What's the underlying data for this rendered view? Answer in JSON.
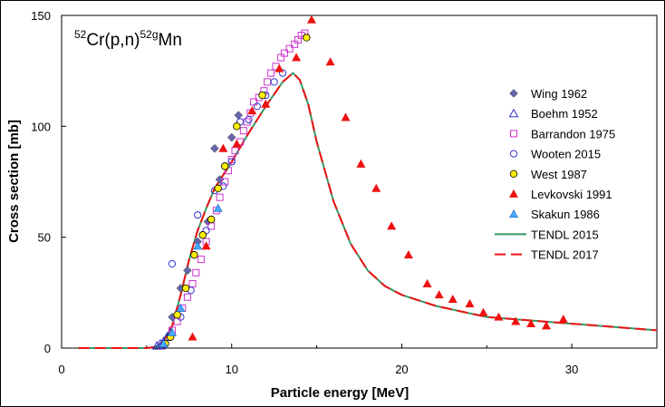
{
  "chart_data": {
    "type": "scatter",
    "title": {
      "sup1": "52",
      "main1": "Cr(p,n)",
      "sup2": "52g",
      "main2": "Mn"
    },
    "xlabel": "Particle  energy [MeV]",
    "ylabel": "Cross section [mb]",
    "xlim": [
      0,
      35
    ],
    "ylim": [
      0,
      150
    ],
    "xticks": [
      0,
      10,
      20,
      30
    ],
    "yticks": [
      0,
      50,
      100,
      150
    ],
    "grid": false,
    "legend_position": "right",
    "series": [
      {
        "name": "Wing 1962",
        "marker": "diamond",
        "color": "#6666aa",
        "x": [
          6.5,
          7.0,
          7.4,
          8.0,
          8.6,
          9.0,
          9.3,
          10.0,
          10.4
        ],
        "y": [
          14,
          27,
          35,
          48,
          57,
          90,
          76,
          95,
          105
        ]
      },
      {
        "name": "Boehm 1952",
        "marker": "triangle-open",
        "color": "#3333cc",
        "x": [
          5.6,
          5.8,
          6.0,
          6.2,
          6.4
        ],
        "y": [
          1,
          2,
          3,
          5,
          7
        ]
      },
      {
        "name": "Barrandon 1975",
        "marker": "square-open",
        "color": "#cc33cc",
        "x": [
          6.5,
          6.8,
          7.1,
          7.4,
          7.7,
          7.9,
          8.2,
          8.5,
          8.8,
          9.1,
          9.3,
          9.6,
          9.8,
          10.0,
          10.2,
          10.5,
          10.7,
          10.9,
          11.1,
          11.3,
          11.6,
          11.9,
          12.1,
          12.3,
          12.6,
          12.9,
          13.1,
          13.4,
          13.7,
          13.9,
          14.1,
          14.3
        ],
        "y": [
          8,
          12,
          18,
          23,
          29,
          34,
          40,
          48,
          55,
          62,
          68,
          75,
          80,
          85,
          89,
          93,
          98,
          102,
          106,
          111,
          113,
          116,
          120,
          124,
          127,
          131,
          133,
          135,
          137,
          139,
          141,
          142
        ]
      },
      {
        "name": "Wooten 2015",
        "marker": "circle-open",
        "color": "#3333cc",
        "x": [
          6.0,
          6.5,
          7.0,
          7.6,
          8.0,
          8.5,
          9.0,
          9.5,
          10.0,
          10.5,
          11.0,
          11.5,
          12.0,
          12.5,
          13.0
        ],
        "y": [
          1,
          38,
          14,
          26,
          60,
          53,
          71,
          73,
          84,
          102,
          103,
          109,
          114,
          120,
          124
        ]
      },
      {
        "name": "West 1987",
        "marker": "circle-filled",
        "color": "#ffee00",
        "x": [
          6.1,
          6.4,
          6.8,
          7.3,
          7.8,
          8.3,
          8.8,
          9.2,
          9.6,
          10.3,
          11.8,
          14.4
        ],
        "y": [
          2,
          5,
          15,
          27,
          42,
          51,
          58,
          72,
          82,
          100,
          114,
          140
        ]
      },
      {
        "name": "Levkovski 1991",
        "marker": "triangle-filled",
        "color": "#ee1111",
        "x": [
          7.7,
          8.5,
          9.5,
          10.3,
          11.2,
          12.0,
          12.8,
          13.8,
          14.7,
          15.8,
          16.7,
          17.6,
          18.5,
          19.4,
          20.4,
          21.5,
          22.2,
          23.0,
          24.0,
          24.8,
          25.7,
          26.7,
          27.6,
          28.5,
          29.5
        ],
        "y": [
          5,
          46,
          90,
          92,
          107,
          110,
          126,
          131,
          148,
          129,
          104,
          83,
          72,
          55,
          42,
          29,
          24,
          22,
          20,
          16,
          14,
          12,
          11,
          10,
          13
        ]
      },
      {
        "name": "Skakun 1986",
        "marker": "triangle-filled",
        "color": "#44aaff",
        "x": [
          6.0,
          6.5,
          7.0,
          8.0,
          9.2
        ],
        "y": [
          2,
          7,
          18,
          46,
          63
        ]
      },
      {
        "name": "TENDL 2015",
        "marker": "line-solid",
        "color": "#339966",
        "x": [
          1,
          5,
          5.5,
          6,
          6.5,
          7,
          7.5,
          8,
          8.5,
          9,
          10,
          11,
          12,
          13,
          13.6,
          14,
          14.5,
          15,
          16,
          17,
          18,
          19,
          20,
          22,
          25,
          30,
          35
        ],
        "y": [
          0,
          0,
          0.5,
          3,
          10,
          24,
          40,
          53,
          63,
          72,
          84,
          97,
          109,
          120,
          124,
          121,
          110,
          93,
          66,
          47,
          35,
          28,
          24,
          19,
          14,
          11,
          8
        ]
      },
      {
        "name": "TENDL 2017",
        "marker": "line-dashed",
        "color": "#ee1111",
        "x": [
          1,
          5,
          5.5,
          6,
          6.5,
          7,
          7.5,
          8,
          8.5,
          9,
          10,
          11,
          12,
          13,
          13.6,
          14,
          14.5,
          15,
          16,
          17,
          18,
          19,
          20,
          22,
          25,
          30,
          35
        ],
        "y": [
          0,
          0,
          0.5,
          3,
          10,
          24,
          40,
          53,
          63,
          72,
          84,
          97,
          109,
          120,
          124,
          121,
          110,
          93,
          66,
          47,
          35,
          28,
          24,
          19,
          14,
          11,
          8
        ]
      }
    ]
  }
}
